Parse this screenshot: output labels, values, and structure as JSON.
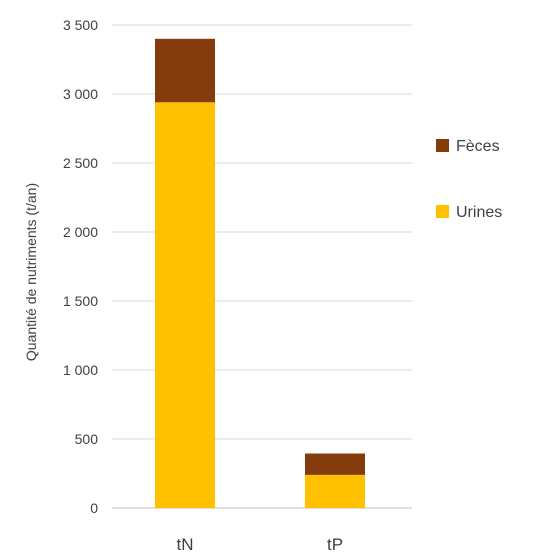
{
  "chart_data": {
    "type": "bar",
    "stacked": true,
    "categories": [
      "tN",
      "tP"
    ],
    "series": [
      {
        "name": "Urines",
        "values": [
          2940,
          240
        ],
        "color": "#FFC000"
      },
      {
        "name": "Fèces",
        "values": [
          460,
          155
        ],
        "color": "#843C0C"
      }
    ],
    "ylabel": "Quantité de nutriments (t/an)",
    "ylim": [
      0,
      3500
    ],
    "yticks": [
      0,
      500,
      1000,
      1500,
      2000,
      2500,
      3000,
      3500
    ],
    "ytick_labels": [
      "0",
      "500",
      "1 000",
      "1 500",
      "2 000",
      "2 500",
      "3 000",
      "3 500"
    ],
    "grid": true,
    "legend": {
      "position": "right",
      "entries": [
        "Fèces",
        "Urines"
      ]
    }
  }
}
